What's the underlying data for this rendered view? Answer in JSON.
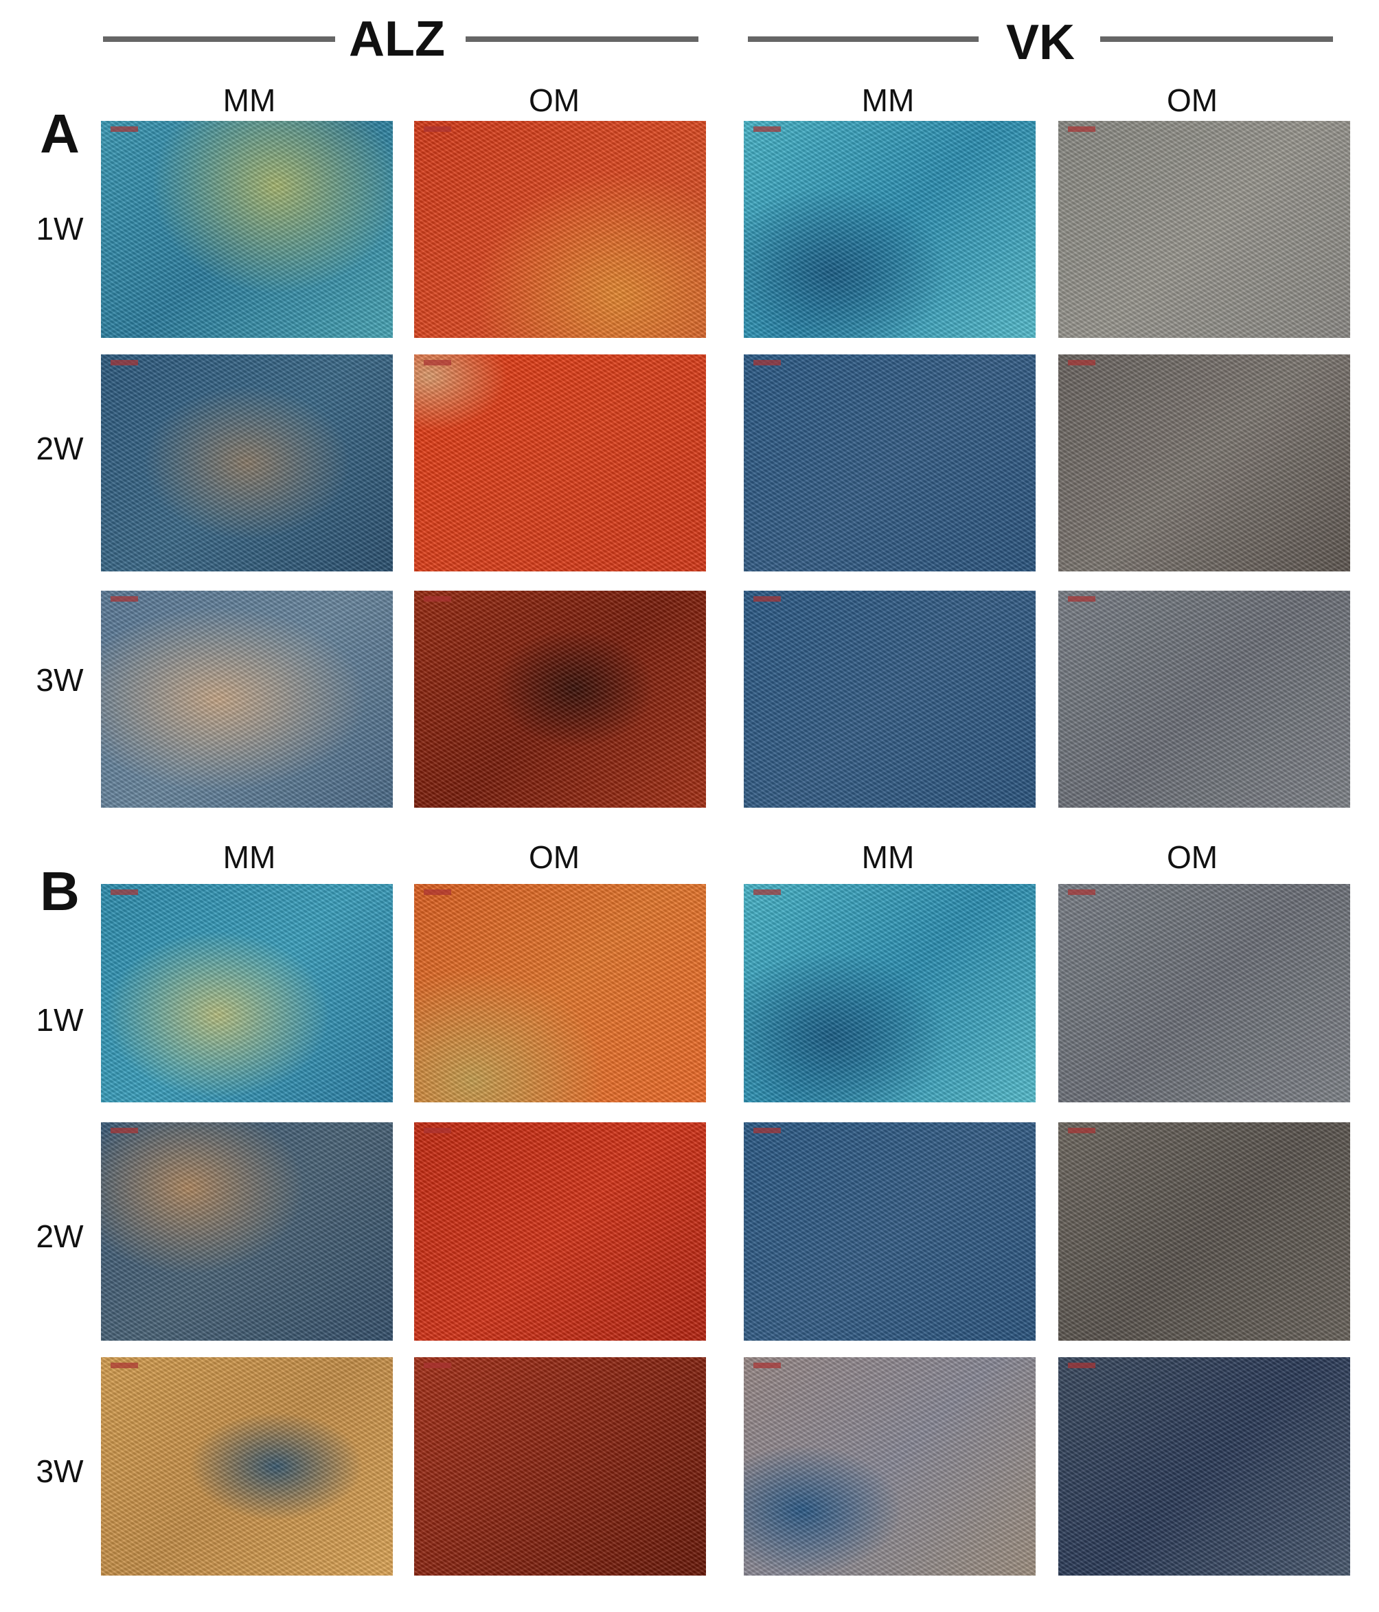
{
  "header": {
    "groups": [
      "ALZ",
      "VK"
    ]
  },
  "panels": [
    {
      "label": "A",
      "columns": [
        "MM",
        "OM",
        "MM",
        "OM"
      ],
      "rows": [
        "1W",
        "2W",
        "3W"
      ]
    },
    {
      "label": "B",
      "columns": [
        "MM",
        "OM",
        "MM",
        "OM"
      ],
      "rows": [
        "1W",
        "2W",
        "3W"
      ]
    }
  ]
}
